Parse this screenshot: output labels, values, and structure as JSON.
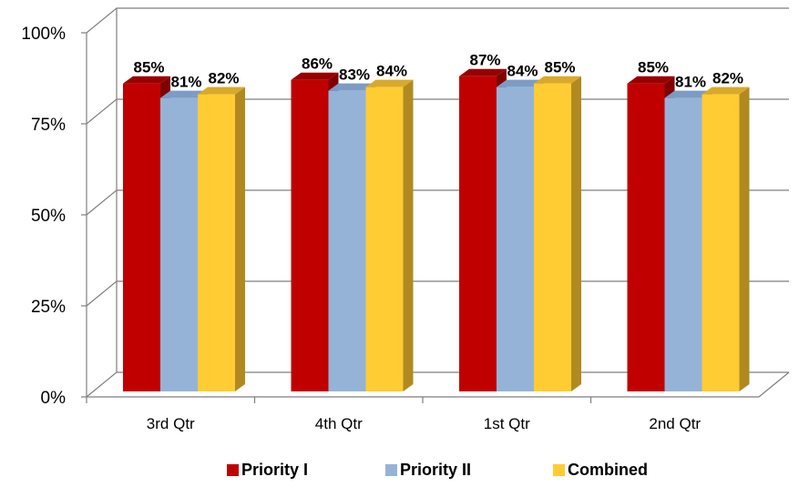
{
  "chart_data": {
    "type": "bar",
    "categories": [
      "3rd Qtr",
      "4th Qtr",
      "1st Qtr",
      "2nd Qtr"
    ],
    "series": [
      {
        "name": "Priority I",
        "values": [
          85,
          86,
          87,
          85
        ],
        "labels": [
          "85%",
          "86%",
          "87%",
          "85%"
        ]
      },
      {
        "name": "Priority II",
        "values": [
          81,
          83,
          84,
          81
        ],
        "labels": [
          "81%",
          "83%",
          "84%",
          "81%"
        ]
      },
      {
        "name": "Combined",
        "values": [
          82,
          84,
          85,
          82
        ],
        "labels": [
          "82%",
          "84%",
          "85%",
          "82%"
        ]
      }
    ],
    "ylim": [
      0,
      100
    ],
    "yticks": [
      0,
      25,
      50,
      75,
      100
    ],
    "ytick_labels": [
      "0%",
      "25%",
      "50%",
      "75%",
      "100%"
    ],
    "grid": true,
    "legend_position": "bottom",
    "style": "3d-clustered-column",
    "colors": {
      "Priority I": {
        "front": "#C00000",
        "side": "#800000",
        "top": "#990000"
      },
      "Priority II": {
        "front": "#95B3D7",
        "side": "#5E7FA8",
        "top": "#7C9CC5"
      },
      "Combined": {
        "front": "#FFCC33",
        "side": "#B08A20",
        "top": "#D9A92A"
      }
    },
    "gridline_color": "#7f7f7f"
  }
}
